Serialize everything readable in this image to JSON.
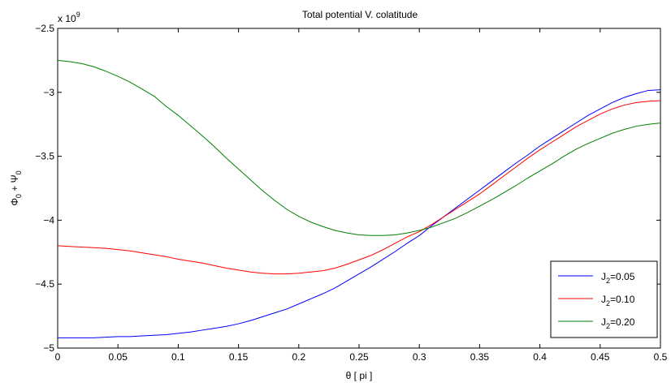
{
  "chart_data": {
    "type": "line",
    "title": "Total potential V. colatitude",
    "xlabel": "θ [ pi ]",
    "ylabel": {
      "main": "Φ",
      "sub1": "0",
      "mid": " + Ψ",
      "sub2": "0"
    },
    "y_multiplier": {
      "base": "x 10",
      "exp": "9"
    },
    "xlim": [
      0,
      0.5
    ],
    "ylim": [
      -5,
      -2.5
    ],
    "x_ticks": [
      0,
      0.05,
      0.1,
      0.15,
      0.2,
      0.25,
      0.3,
      0.35,
      0.4,
      0.45,
      0.5
    ],
    "x_tick_labels": [
      "0",
      "0.05",
      "0.1",
      "0.15",
      "0.2",
      "0.25",
      "0.3",
      "0.35",
      "0.4",
      "0.45",
      "0.5"
    ],
    "y_ticks": [
      -5,
      -4.5,
      -4,
      -3.5,
      -3,
      -2.5
    ],
    "y_tick_labels": [
      "−5",
      "−4.5",
      "−4",
      "−3.5",
      "−3",
      "−2.5"
    ],
    "grid": false,
    "legend_position": "bottom-right",
    "x": [
      0,
      0.01,
      0.02,
      0.03,
      0.04,
      0.05,
      0.06,
      0.07,
      0.08,
      0.09,
      0.1,
      0.11,
      0.12,
      0.13,
      0.14,
      0.15,
      0.16,
      0.17,
      0.18,
      0.19,
      0.2,
      0.21,
      0.22,
      0.23,
      0.24,
      0.25,
      0.26,
      0.27,
      0.28,
      0.29,
      0.3,
      0.31,
      0.32,
      0.33,
      0.34,
      0.35,
      0.36,
      0.37,
      0.38,
      0.39,
      0.4,
      0.41,
      0.42,
      0.43,
      0.44,
      0.45,
      0.46,
      0.47,
      0.48,
      0.49,
      0.5
    ],
    "series": [
      {
        "name_main": "J",
        "name_sub": "2",
        "name_rest": "=0.05",
        "color": "#0000ff",
        "values": [
          -4.92,
          -4.92,
          -4.92,
          -4.92,
          -4.915,
          -4.91,
          -4.91,
          -4.905,
          -4.9,
          -4.895,
          -4.885,
          -4.875,
          -4.86,
          -4.845,
          -4.83,
          -4.81,
          -4.785,
          -4.755,
          -4.725,
          -4.695,
          -4.655,
          -4.615,
          -4.575,
          -4.53,
          -4.475,
          -4.42,
          -4.365,
          -4.305,
          -4.245,
          -4.18,
          -4.12,
          -4.045,
          -3.975,
          -3.905,
          -3.835,
          -3.765,
          -3.695,
          -3.625,
          -3.555,
          -3.49,
          -3.42,
          -3.36,
          -3.3,
          -3.24,
          -3.18,
          -3.13,
          -3.08,
          -3.04,
          -3.01,
          -2.985,
          -2.98
        ]
      },
      {
        "name_main": "J",
        "name_sub": "2",
        "name_rest": "=0.10",
        "color": "#ff0000",
        "values": [
          -4.2,
          -4.205,
          -4.21,
          -4.215,
          -4.22,
          -4.23,
          -4.24,
          -4.255,
          -4.27,
          -4.285,
          -4.305,
          -4.32,
          -4.335,
          -4.355,
          -4.375,
          -4.39,
          -4.405,
          -4.415,
          -4.42,
          -4.42,
          -4.415,
          -4.405,
          -4.395,
          -4.375,
          -4.345,
          -4.31,
          -4.275,
          -4.23,
          -4.18,
          -4.13,
          -4.09,
          -4.035,
          -3.975,
          -3.915,
          -3.855,
          -3.795,
          -3.725,
          -3.655,
          -3.585,
          -3.515,
          -3.45,
          -3.39,
          -3.33,
          -3.27,
          -3.22,
          -3.17,
          -3.13,
          -3.1,
          -3.08,
          -3.07,
          -3.065
        ]
      },
      {
        "name_main": "J",
        "name_sub": "2",
        "name_rest": "=0.20",
        "color": "#008000",
        "values": [
          -2.75,
          -2.76,
          -2.775,
          -2.8,
          -2.835,
          -2.875,
          -2.92,
          -2.975,
          -3.03,
          -3.11,
          -3.18,
          -3.26,
          -3.34,
          -3.425,
          -3.515,
          -3.6,
          -3.685,
          -3.77,
          -3.845,
          -3.915,
          -3.97,
          -4.015,
          -4.05,
          -4.08,
          -4.1,
          -4.115,
          -4.12,
          -4.12,
          -4.115,
          -4.1,
          -4.08,
          -4.055,
          -4.02,
          -3.985,
          -3.94,
          -3.89,
          -3.84,
          -3.785,
          -3.73,
          -3.67,
          -3.615,
          -3.56,
          -3.5,
          -3.445,
          -3.4,
          -3.36,
          -3.32,
          -3.29,
          -3.265,
          -3.25,
          -3.24
        ]
      }
    ]
  }
}
